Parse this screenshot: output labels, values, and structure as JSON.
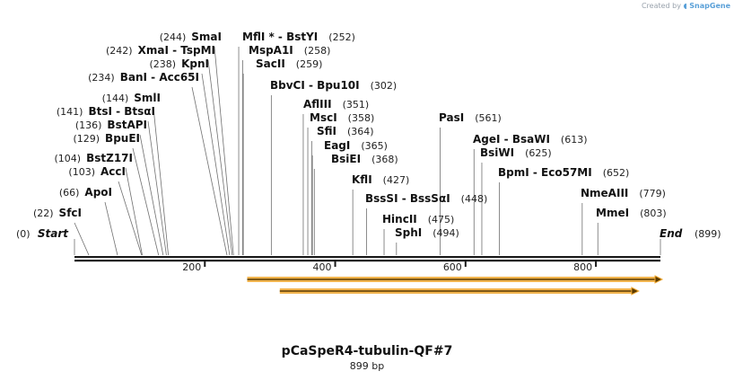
{
  "app": {
    "credit_prefix": "Created by",
    "credit_brand": "SnapGene"
  },
  "map": {
    "name": "pCaSpeR4-tubulin-QF#7",
    "length_label": "899 bp",
    "length_bp": 899,
    "ticks": [
      200,
      400,
      600,
      800
    ],
    "start_label": "Start",
    "start_pos": 0,
    "end_label": "End",
    "end_pos": 899,
    "sites": [
      {
        "name": "SfcI",
        "pos": 22,
        "star": false
      },
      {
        "name": "ApoI",
        "pos": 66,
        "star": false
      },
      {
        "name": "AccI",
        "pos": 103,
        "star": false
      },
      {
        "name": "BstZ17I",
        "pos": 104,
        "star": false
      },
      {
        "name": "BpuEI",
        "pos": 129,
        "star": false
      },
      {
        "name": "BstAPI",
        "pos": 136,
        "star": false
      },
      {
        "name": "BtsI - BtsαI",
        "pos": 141,
        "star": false
      },
      {
        "name": "SmlI",
        "pos": 144,
        "star": false
      },
      {
        "name": "BanI - Acc65I",
        "pos": 234,
        "star": false
      },
      {
        "name": "KpnI",
        "pos": 238,
        "star": false
      },
      {
        "name": "XmaI - TspMI",
        "pos": 242,
        "star": false
      },
      {
        "name": "SmaI",
        "pos": 244,
        "star": false
      },
      {
        "name": "MflI * - BstYI",
        "pos": 252,
        "star": true
      },
      {
        "name": "MspA1I",
        "pos": 258,
        "star": false
      },
      {
        "name": "SacII",
        "pos": 259,
        "star": false
      },
      {
        "name": "BbvCI - Bpu10I",
        "pos": 302,
        "star": false
      },
      {
        "name": "AflIII",
        "pos": 351,
        "star": false
      },
      {
        "name": "MscI",
        "pos": 358,
        "star": false
      },
      {
        "name": "SfiI",
        "pos": 364,
        "star": false
      },
      {
        "name": "EagI",
        "pos": 365,
        "star": false
      },
      {
        "name": "BsiEI",
        "pos": 368,
        "star": false
      },
      {
        "name": "KflI",
        "pos": 427,
        "star": false
      },
      {
        "name": "BssSI - BssSαI",
        "pos": 448,
        "star": false
      },
      {
        "name": "HincII",
        "pos": 475,
        "star": false
      },
      {
        "name": "SphI",
        "pos": 494,
        "star": false
      },
      {
        "name": "PasI",
        "pos": 561,
        "star": false
      },
      {
        "name": "AgeI - BsaWI",
        "pos": 613,
        "star": false
      },
      {
        "name": "BsiWI",
        "pos": 625,
        "star": false
      },
      {
        "name": "BpmI - Eco57MI",
        "pos": 652,
        "star": false
      },
      {
        "name": "NmeAIII",
        "pos": 779,
        "star": false
      },
      {
        "name": "MmeI",
        "pos": 803,
        "star": false
      }
    ],
    "features": [
      {
        "start": 265,
        "end": 899,
        "color": "#f0a830"
      },
      {
        "start": 315,
        "end": 863,
        "color": "#f0a830"
      }
    ],
    "colors": {
      "backbone": "#1a1a1a",
      "feature_fill": "#f0a830",
      "feature_line": "#5a3a00",
      "leader": "#707070"
    }
  }
}
